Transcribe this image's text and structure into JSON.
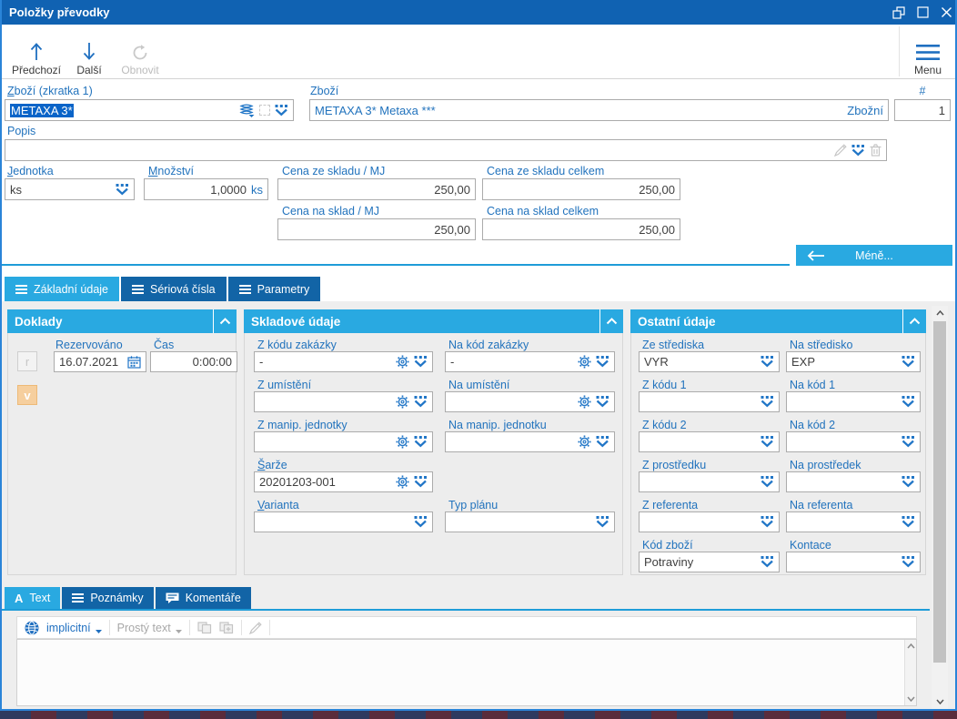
{
  "window": {
    "title": "Položky převodky"
  },
  "toolbar": {
    "prev_label": "Předchozí",
    "next_label": "Další",
    "refresh_label": "Obnovit",
    "menu_label": "Menu"
  },
  "header_form": {
    "zbozi_zkratka_label": "Zboží (zkratka 1)",
    "zbozi_zkratka_value": "METAXA 3*",
    "zbozi_label": "Zboží",
    "zbozi_value": "METAXA 3* Metaxa ***",
    "zbozi_type": "Zbožní",
    "number_label": "#",
    "number_value": "1",
    "popis_label": "Popis",
    "popis_value": "",
    "jednotka_label": "Jednotka",
    "jednotka_value": "ks",
    "mnozstvi_label": "Množství",
    "mnozstvi_value": "1,0000",
    "mnozstvi_unit": "ks",
    "cena_ze_mj_label": "Cena ze skladu / MJ",
    "cena_ze_mj_value": "250,00",
    "cena_ze_celkem_label": "Cena ze skladu celkem",
    "cena_ze_celkem_value": "250,00",
    "cena_na_mj_label": "Cena na sklad / MJ",
    "cena_na_mj_value": "250,00",
    "cena_na_celkem_label": "Cena na sklad celkem",
    "cena_na_celkem_value": "250,00",
    "less_button_label": "Méně..."
  },
  "main_tabs": {
    "basic": "Základní údaje",
    "serial": "Sériová čísla",
    "params": "Parametry"
  },
  "doklady": {
    "title": "Doklady",
    "r_button": "r",
    "v_button": "v",
    "rezervovano_label": "Rezervováno",
    "rezervovano_value": "16.07.2021",
    "cas_label": "Čas",
    "cas_value": "0:00:00"
  },
  "skladove": {
    "title": "Skladové údaje",
    "z_kodu_zakazky_label": "Z kódu zakázky",
    "z_kodu_zakazky_value": "-",
    "na_kod_zakazky_label": "Na kód zakázky",
    "na_kod_zakazky_value": "-",
    "z_umisteni_label": "Z umístění",
    "z_umisteni_value": "",
    "na_umisteni_label": "Na umístění",
    "na_umisteni_value": "",
    "z_manip_label": "Z manip. jednotky",
    "z_manip_value": "",
    "na_manip_label": "Na manip. jednotku",
    "na_manip_value": "",
    "sarze_label": "Šarže",
    "sarze_value": "20201203-001",
    "varianta_label": "Varianta",
    "varianta_value": "",
    "typ_planu_label": "Typ plánu",
    "typ_planu_value": ""
  },
  "ostatni": {
    "title": "Ostatní údaje",
    "ze_strediska_label": "Ze střediska",
    "ze_strediska_value": "VYR",
    "na_stredisko_label": "Na středisko",
    "na_stredisko_value": "EXP",
    "z_kodu1_label": "Z kódu 1",
    "z_kodu1_value": "",
    "na_kod1_label": "Na kód 1",
    "na_kod1_value": "",
    "z_kodu2_label": "Z kódu 2",
    "z_kodu2_value": "",
    "na_kod2_label": "Na kód 2",
    "na_kod2_value": "",
    "z_prostredku_label": "Z prostředku",
    "z_prostredku_value": "",
    "na_prostredek_label": "Na prostředek",
    "na_prostredek_value": "",
    "z_referenta_label": "Z referenta",
    "z_referenta_value": "",
    "na_referenta_label": "Na referenta",
    "na_referenta_value": "",
    "kod_zbozi_label": "Kód zboží",
    "kod_zbozi_value": "Potraviny",
    "kontace_label": "Kontace",
    "kontace_value": ""
  },
  "bottom_tabs": {
    "text": "Text",
    "poznamky": "Poznámky",
    "komentare": "Komentáře"
  },
  "editor": {
    "language": "implicitní",
    "format": "Prostý text",
    "content": ""
  },
  "colors": {
    "titlebar": "#1062b2",
    "accent": "#29a9e1",
    "dark_tab": "#1264a6",
    "label_blue": "#2273bd",
    "selection": "#0a64c8"
  }
}
